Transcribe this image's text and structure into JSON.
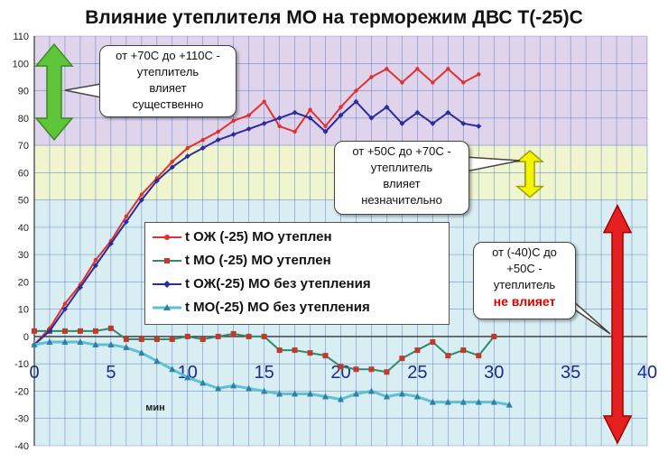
{
  "title": "Влияние утеплителя МО на терморежим ДВС Т(-25)С",
  "chart_data": {
    "type": "line",
    "xlabel": "мин",
    "ylabel": "",
    "xlim": [
      0,
      40
    ],
    "ylim": [
      -40,
      110
    ],
    "x_ticks": [
      "0",
      "5",
      "10",
      "15",
      "20",
      "25",
      "30",
      "35",
      "40"
    ],
    "y_ticks": [
      "-40",
      "-30",
      "-20",
      "-10",
      "0",
      "10",
      "20",
      "30",
      "40",
      "50",
      "60",
      "70",
      "80",
      "90",
      "100",
      "110"
    ],
    "grid": true,
    "legend_position": "center-left",
    "zones": [
      {
        "from": 70,
        "to": 110,
        "color": "#e0d4ec"
      },
      {
        "from": 50,
        "to": 70,
        "color": "#eef5cf"
      },
      {
        "from": -40,
        "to": 50,
        "color": "#d8eef2"
      }
    ],
    "series": [
      {
        "name": "t ОЖ (-25) МО утеплен",
        "color": "#e03030",
        "marker": "circle",
        "x": [
          0,
          1,
          2,
          3,
          4,
          5,
          6,
          7,
          8,
          9,
          10,
          11,
          12,
          13,
          14,
          15,
          16,
          17,
          18,
          19,
          20,
          21,
          22,
          23,
          24,
          25,
          26,
          27,
          28,
          29
        ],
        "y": [
          -3,
          3,
          12,
          19,
          28,
          35,
          44,
          52,
          58,
          64,
          69,
          72,
          75,
          79,
          81,
          86,
          77,
          75,
          83,
          77,
          84,
          90,
          95,
          98,
          93,
          98,
          93,
          98,
          93,
          96
        ]
      },
      {
        "name": "t МО (-25) МО утеплен",
        "color": "#2f8a6a",
        "marker": "square",
        "x": [
          0,
          1,
          2,
          3,
          4,
          5,
          6,
          7,
          8,
          9,
          10,
          11,
          12,
          13,
          14,
          15,
          16,
          17,
          18,
          19,
          20,
          21,
          22,
          23,
          24,
          25,
          26,
          27,
          28,
          29,
          30
        ],
        "y": [
          2,
          2,
          2,
          2,
          2,
          3,
          -1,
          -1,
          -1,
          -1,
          0,
          -1,
          0,
          1,
          0,
          0,
          -5,
          -5,
          -6,
          -7,
          -11,
          -12,
          -12,
          -13,
          -8,
          -5,
          -2,
          -7,
          -5,
          -7,
          0
        ]
      },
      {
        "name": "t ОЖ(-25) МО без утепления",
        "color": "#2c2c9c",
        "marker": "diamond",
        "x": [
          0,
          1,
          2,
          3,
          4,
          5,
          6,
          7,
          8,
          9,
          10,
          11,
          12,
          13,
          14,
          15,
          16,
          17,
          18,
          19,
          20,
          21,
          22,
          23,
          24,
          25,
          26,
          27,
          28,
          29
        ],
        "y": [
          -3,
          2,
          10,
          18,
          26,
          34,
          42,
          50,
          57,
          62,
          66,
          69,
          72,
          74,
          76,
          78,
          80,
          82,
          80,
          75,
          81,
          86,
          80,
          84,
          78,
          82,
          78,
          82,
          78,
          77
        ]
      },
      {
        "name": "t МО(-25) МО без утепления",
        "color": "#5ec0d2",
        "marker": "triangle",
        "x": [
          0,
          1,
          2,
          3,
          4,
          5,
          6,
          7,
          8,
          9,
          10,
          11,
          12,
          13,
          14,
          15,
          16,
          17,
          18,
          19,
          20,
          21,
          22,
          23,
          24,
          25,
          26,
          27,
          28,
          29,
          30,
          31
        ],
        "y": [
          -3,
          -2,
          -2,
          -2,
          -3,
          -3,
          -4,
          -6,
          -9,
          -12,
          -15,
          -17,
          -19,
          -18,
          -19,
          -20,
          -21,
          -21,
          -21,
          -22,
          -23,
          -21,
          -20,
          -22,
          -21,
          -22,
          -24,
          -24,
          -24,
          -24,
          -24,
          -25
        ]
      }
    ]
  },
  "annotations": {
    "zone_high": [
      "от +70С до +110С -",
      "утеплитель",
      "влияет",
      "существенно"
    ],
    "zone_mid": [
      "от +50С до +70С -",
      "утеплитель",
      "влияет",
      "незначительно"
    ],
    "zone_low": [
      "от (-40)С до",
      "+50С -",
      "утеплитель"
    ],
    "zone_low_emph": "не влияет"
  }
}
